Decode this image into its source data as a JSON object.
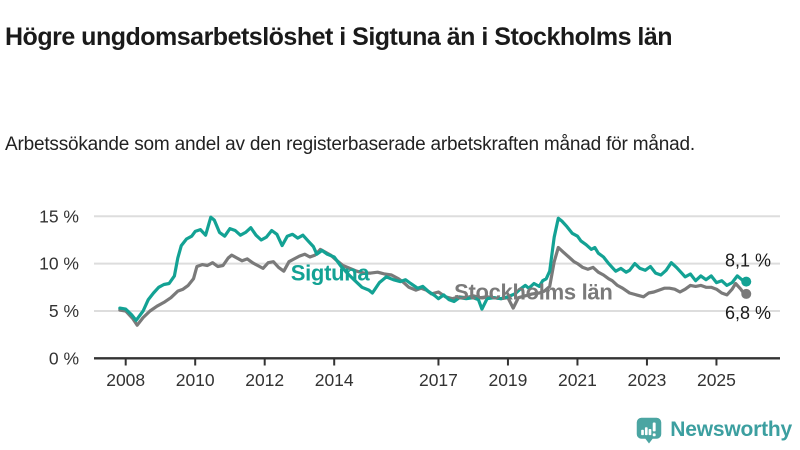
{
  "header": {
    "title": "Högre ungdomsarbetslöshet i Sigtuna än i Stockholms län",
    "subtitle": "Arbetssökande som andel av den registerbaserade arbetskraften månad för månad."
  },
  "chart_data": {
    "type": "line",
    "title": "Högre ungdomsarbetslöshet i Sigtuna än i Stockholms län",
    "xlabel": "",
    "ylabel": "",
    "grid": true,
    "gridline_color": "#dddddd",
    "axis_color": "#333333",
    "x_axis": {
      "ticks": [
        2008,
        2010,
        2012,
        2014,
        2017,
        2019,
        2021,
        2023,
        2025
      ]
    },
    "y_axis": {
      "ticks": [
        0,
        5,
        10,
        15
      ],
      "tick_labels": [
        "0 %",
        "5 %",
        "10 %",
        "15 %"
      ],
      "range": [
        0,
        16.5
      ]
    },
    "series": [
      {
        "name": "Sigtuna",
        "color": "#13a294",
        "end_label": "8,1 %",
        "end_value": 8.1,
        "label_anchor": [
          2012.75,
          8.2
        ],
        "points": [
          [
            2007.83,
            5.3
          ],
          [
            2008.0,
            5.2
          ],
          [
            2008.17,
            4.6
          ],
          [
            2008.3,
            4.0
          ],
          [
            2008.5,
            5.0
          ],
          [
            2008.65,
            6.2
          ],
          [
            2008.8,
            6.9
          ],
          [
            2008.95,
            7.5
          ],
          [
            2009.1,
            7.8
          ],
          [
            2009.25,
            7.9
          ],
          [
            2009.4,
            8.7
          ],
          [
            2009.5,
            10.6
          ],
          [
            2009.6,
            11.9
          ],
          [
            2009.75,
            12.6
          ],
          [
            2009.9,
            12.9
          ],
          [
            2010.0,
            13.4
          ],
          [
            2010.15,
            13.6
          ],
          [
            2010.3,
            13.0
          ],
          [
            2010.45,
            14.9
          ],
          [
            2010.55,
            14.6
          ],
          [
            2010.7,
            13.3
          ],
          [
            2010.85,
            12.9
          ],
          [
            2011.0,
            13.7
          ],
          [
            2011.15,
            13.5
          ],
          [
            2011.3,
            13.0
          ],
          [
            2011.45,
            13.3
          ],
          [
            2011.6,
            13.8
          ],
          [
            2011.75,
            13.0
          ],
          [
            2011.9,
            12.5
          ],
          [
            2012.05,
            12.8
          ],
          [
            2012.2,
            13.5
          ],
          [
            2012.35,
            13.1
          ],
          [
            2012.5,
            11.9
          ],
          [
            2012.65,
            12.9
          ],
          [
            2012.8,
            13.1
          ],
          [
            2012.95,
            12.7
          ],
          [
            2013.1,
            13.0
          ],
          [
            2013.25,
            12.4
          ],
          [
            2013.4,
            11.8
          ],
          [
            2013.5,
            11.0
          ],
          [
            2013.65,
            11.4
          ],
          [
            2013.8,
            11.0
          ],
          [
            2014.0,
            10.7
          ],
          [
            2014.2,
            9.7
          ],
          [
            2014.4,
            8.9
          ],
          [
            2014.6,
            8.2
          ],
          [
            2014.8,
            7.5
          ],
          [
            2015.0,
            7.2
          ],
          [
            2015.1,
            6.9
          ],
          [
            2015.3,
            8.0
          ],
          [
            2015.5,
            8.6
          ],
          [
            2015.7,
            8.3
          ],
          [
            2015.9,
            8.1
          ],
          [
            2016.05,
            8.3
          ],
          [
            2016.2,
            7.9
          ],
          [
            2016.4,
            7.4
          ],
          [
            2016.55,
            7.6
          ],
          [
            2016.7,
            7.1
          ],
          [
            2016.9,
            6.6
          ],
          [
            2017.0,
            6.3
          ],
          [
            2017.15,
            6.7
          ],
          [
            2017.3,
            6.2
          ],
          [
            2017.45,
            6.0
          ],
          [
            2017.6,
            6.4
          ],
          [
            2017.8,
            6.3
          ],
          [
            2018.0,
            6.4
          ],
          [
            2018.15,
            6.2
          ],
          [
            2018.25,
            5.2
          ],
          [
            2018.4,
            6.3
          ],
          [
            2018.6,
            6.4
          ],
          [
            2018.8,
            6.3
          ],
          [
            2019.0,
            6.5
          ],
          [
            2019.2,
            6.8
          ],
          [
            2019.35,
            7.3
          ],
          [
            2019.5,
            7.7
          ],
          [
            2019.6,
            7.4
          ],
          [
            2019.75,
            7.9
          ],
          [
            2019.9,
            7.6
          ],
          [
            2020.0,
            8.2
          ],
          [
            2020.1,
            8.4
          ],
          [
            2020.2,
            9.2
          ],
          [
            2020.33,
            12.8
          ],
          [
            2020.45,
            14.8
          ],
          [
            2020.55,
            14.5
          ],
          [
            2020.7,
            13.9
          ],
          [
            2020.85,
            13.2
          ],
          [
            2021.0,
            12.9
          ],
          [
            2021.1,
            12.4
          ],
          [
            2021.25,
            12.0
          ],
          [
            2021.4,
            11.5
          ],
          [
            2021.5,
            11.7
          ],
          [
            2021.6,
            11.1
          ],
          [
            2021.75,
            10.7
          ],
          [
            2021.9,
            10.0
          ],
          [
            2022.0,
            9.6
          ],
          [
            2022.1,
            9.2
          ],
          [
            2022.25,
            9.5
          ],
          [
            2022.4,
            9.1
          ],
          [
            2022.5,
            9.3
          ],
          [
            2022.65,
            10.0
          ],
          [
            2022.8,
            9.5
          ],
          [
            2022.95,
            9.3
          ],
          [
            2023.1,
            9.7
          ],
          [
            2023.25,
            9.0
          ],
          [
            2023.4,
            8.8
          ],
          [
            2023.55,
            9.3
          ],
          [
            2023.7,
            10.1
          ],
          [
            2023.85,
            9.6
          ],
          [
            2024.0,
            9.0
          ],
          [
            2024.1,
            8.6
          ],
          [
            2024.25,
            8.9
          ],
          [
            2024.4,
            8.2
          ],
          [
            2024.55,
            8.7
          ],
          [
            2024.7,
            8.3
          ],
          [
            2024.85,
            8.7
          ],
          [
            2025.0,
            8.0
          ],
          [
            2025.15,
            8.2
          ],
          [
            2025.3,
            7.7
          ],
          [
            2025.45,
            8.0
          ],
          [
            2025.6,
            8.7
          ],
          [
            2025.7,
            8.4
          ],
          [
            2025.8,
            8.1
          ]
        ]
      },
      {
        "name": "Stockholms län",
        "color": "#7a7a7a",
        "end_label": "6,8 %",
        "end_value": 6.8,
        "label_anchor": [
          2017.45,
          6.2
        ],
        "points": [
          [
            2007.83,
            5.1
          ],
          [
            2008.0,
            5.0
          ],
          [
            2008.2,
            4.2
          ],
          [
            2008.33,
            3.5
          ],
          [
            2008.5,
            4.3
          ],
          [
            2008.7,
            5.0
          ],
          [
            2008.9,
            5.5
          ],
          [
            2009.1,
            5.9
          ],
          [
            2009.3,
            6.4
          ],
          [
            2009.5,
            7.1
          ],
          [
            2009.65,
            7.3
          ],
          [
            2009.8,
            7.7
          ],
          [
            2009.95,
            8.4
          ],
          [
            2010.05,
            9.7
          ],
          [
            2010.2,
            9.9
          ],
          [
            2010.35,
            9.8
          ],
          [
            2010.5,
            10.1
          ],
          [
            2010.65,
            9.7
          ],
          [
            2010.8,
            9.8
          ],
          [
            2010.95,
            10.6
          ],
          [
            2011.05,
            10.9
          ],
          [
            2011.2,
            10.6
          ],
          [
            2011.35,
            10.3
          ],
          [
            2011.5,
            10.5
          ],
          [
            2011.65,
            10.1
          ],
          [
            2011.8,
            9.8
          ],
          [
            2011.95,
            9.5
          ],
          [
            2012.1,
            10.1
          ],
          [
            2012.25,
            10.2
          ],
          [
            2012.4,
            9.6
          ],
          [
            2012.55,
            9.2
          ],
          [
            2012.7,
            10.2
          ],
          [
            2012.85,
            10.5
          ],
          [
            2013.0,
            10.8
          ],
          [
            2013.15,
            11.0
          ],
          [
            2013.3,
            10.7
          ],
          [
            2013.45,
            10.9
          ],
          [
            2013.6,
            11.5
          ],
          [
            2013.75,
            11.2
          ],
          [
            2013.9,
            10.9
          ],
          [
            2014.05,
            10.4
          ],
          [
            2014.25,
            9.8
          ],
          [
            2014.45,
            9.5
          ],
          [
            2014.65,
            9.2
          ],
          [
            2014.85,
            9.0
          ],
          [
            2015.05,
            9.0
          ],
          [
            2015.25,
            9.1
          ],
          [
            2015.45,
            8.9
          ],
          [
            2015.65,
            8.8
          ],
          [
            2015.85,
            8.4
          ],
          [
            2016.0,
            8.0
          ],
          [
            2016.15,
            7.5
          ],
          [
            2016.35,
            7.2
          ],
          [
            2016.5,
            7.4
          ],
          [
            2016.65,
            7.2
          ],
          [
            2016.8,
            6.8
          ],
          [
            2017.0,
            7.0
          ],
          [
            2017.2,
            6.5
          ],
          [
            2017.4,
            6.3
          ],
          [
            2017.6,
            6.5
          ],
          [
            2017.8,
            6.4
          ],
          [
            2018.0,
            6.6
          ],
          [
            2018.2,
            6.4
          ],
          [
            2018.4,
            6.5
          ],
          [
            2018.6,
            6.4
          ],
          [
            2018.8,
            6.3
          ],
          [
            2019.0,
            6.4
          ],
          [
            2019.15,
            5.3
          ],
          [
            2019.3,
            6.4
          ],
          [
            2019.5,
            6.6
          ],
          [
            2019.7,
            6.8
          ],
          [
            2019.9,
            6.9
          ],
          [
            2020.05,
            7.1
          ],
          [
            2020.2,
            7.6
          ],
          [
            2020.33,
            10.2
          ],
          [
            2020.45,
            11.7
          ],
          [
            2020.6,
            11.2
          ],
          [
            2020.75,
            10.7
          ],
          [
            2020.9,
            10.2
          ],
          [
            2021.0,
            10.0
          ],
          [
            2021.15,
            9.6
          ],
          [
            2021.3,
            9.4
          ],
          [
            2021.45,
            9.6
          ],
          [
            2021.6,
            9.1
          ],
          [
            2021.75,
            8.8
          ],
          [
            2021.9,
            8.4
          ],
          [
            2022.0,
            8.2
          ],
          [
            2022.15,
            7.7
          ],
          [
            2022.3,
            7.4
          ],
          [
            2022.5,
            6.9
          ],
          [
            2022.7,
            6.7
          ],
          [
            2022.9,
            6.5
          ],
          [
            2023.05,
            6.9
          ],
          [
            2023.2,
            7.0
          ],
          [
            2023.35,
            7.2
          ],
          [
            2023.5,
            7.4
          ],
          [
            2023.65,
            7.4
          ],
          [
            2023.8,
            7.3
          ],
          [
            2023.95,
            7.0
          ],
          [
            2024.1,
            7.3
          ],
          [
            2024.25,
            7.7
          ],
          [
            2024.4,
            7.6
          ],
          [
            2024.55,
            7.7
          ],
          [
            2024.7,
            7.5
          ],
          [
            2024.85,
            7.5
          ],
          [
            2025.0,
            7.3
          ],
          [
            2025.15,
            6.9
          ],
          [
            2025.3,
            6.7
          ],
          [
            2025.45,
            7.3
          ],
          [
            2025.55,
            7.9
          ],
          [
            2025.7,
            7.3
          ],
          [
            2025.8,
            6.8
          ]
        ]
      }
    ],
    "legend_position": "inline-labels"
  },
  "footer": {
    "brand": "Newsworthy",
    "brand_color": "#3c9fa0",
    "brand_icon": "newsworthy-chart-bubble-icon",
    "brand_icon_color": "#4ba5a2"
  }
}
